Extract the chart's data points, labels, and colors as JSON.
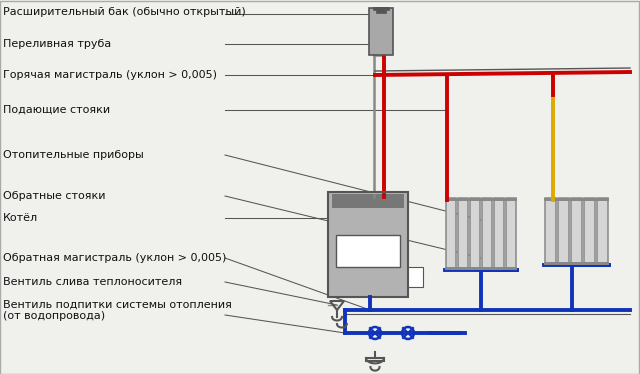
{
  "bg_color": "#f0f0ec",
  "red_color": "#cc0000",
  "blue_color": "#1133bb",
  "gray_body": "#a8a8a8",
  "dark_gray": "#555555",
  "mid_gray": "#888888",
  "yellow_color": "#ddaa00",
  "text_color": "#111111",
  "font_size": 8.0,
  "labels": [
    "Расширительный бак (обычно открытый)",
    "Переливная труба",
    "Горячая магистраль (уклон > 0,005)",
    "Подающие стояки",
    "Отопительные приборы",
    "Обратные стояки",
    "Котёл",
    "Обратная магистраль (уклон > 0,005)",
    "Вентиль слива теплоносителя",
    "Вентиль подпитки системы отопления\n(от водопровода)"
  ],
  "label_y_img": [
    12,
    44,
    75,
    110,
    155,
    196,
    218,
    258,
    282,
    310
  ]
}
